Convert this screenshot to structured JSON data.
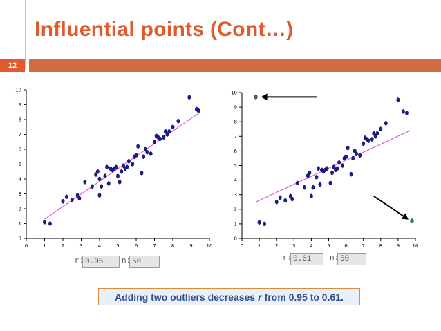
{
  "slide": {
    "title": "Influential points (Cont…)",
    "number": "12",
    "accent_color": "#e05a2e",
    "caption": {
      "before": "Adding two outliers decreases",
      "symbol": "r",
      "after": "from 0.95 to 0.61."
    }
  },
  "panels": [
    {
      "stats": {
        "r_label": "r:",
        "r_value": "0.95",
        "n_label": "n:",
        "n_value": "50"
      }
    },
    {
      "stats": {
        "r_label": "r:",
        "r_value": "0.61",
        "n_label": "n:",
        "n_value": "50"
      }
    }
  ],
  "chart_data": [
    {
      "type": "scatter",
      "xlim": [
        0,
        10
      ],
      "ylim": [
        0,
        10
      ],
      "xticks": [
        "0",
        "1",
        "2",
        "3",
        "4",
        "5",
        "6",
        "7",
        "8",
        "9",
        "10"
      ],
      "yticks": [
        "0",
        "1",
        "2",
        "3",
        "4",
        "5",
        "6",
        "7",
        "8",
        "9",
        "10"
      ],
      "grid": false,
      "point_color": "#1c1c8a",
      "regression_line": {
        "color": "#e040e0",
        "points": [
          [
            1,
            1.3
          ],
          [
            9.5,
            8.5
          ]
        ]
      },
      "x": [
        1.0,
        1.3,
        2.0,
        2.2,
        2.5,
        2.8,
        2.9,
        3.2,
        3.6,
        3.8,
        3.9,
        4.0,
        4.1,
        4.3,
        4.4,
        4.5,
        4.6,
        4.7,
        4.8,
        4.9,
        5.1,
        5.2,
        5.3,
        5.4,
        5.5,
        5.6,
        5.8,
        5.9,
        6.0,
        6.1,
        6.3,
        6.4,
        6.5,
        6.6,
        6.8,
        7.0,
        7.1,
        7.2,
        7.3,
        7.5,
        7.6,
        7.7,
        7.8,
        8.0,
        8.3,
        8.9,
        9.3,
        9.4,
        4.0,
        5.0
      ],
      "y": [
        1.1,
        1.0,
        2.5,
        2.8,
        2.6,
        2.9,
        2.7,
        3.8,
        3.5,
        4.3,
        4.5,
        2.9,
        3.5,
        4.2,
        4.8,
        3.7,
        4.7,
        4.6,
        4.7,
        4.8,
        3.8,
        4.5,
        4.9,
        4.7,
        4.8,
        5.2,
        5.0,
        5.5,
        5.6,
        6.2,
        4.4,
        5.5,
        6.0,
        5.8,
        5.7,
        6.5,
        6.9,
        6.8,
        6.7,
        6.8,
        7.2,
        7.0,
        7.2,
        7.5,
        7.9,
        9.5,
        8.7,
        8.6,
        4.0,
        4.2
      ]
    },
    {
      "type": "scatter",
      "xlim": [
        0,
        10
      ],
      "ylim": [
        0,
        10
      ],
      "xticks": [
        "0",
        "1",
        "2",
        "3",
        "4",
        "5",
        "6",
        "7",
        "8",
        "9",
        "10"
      ],
      "yticks": [
        "0",
        "1",
        "2",
        "3",
        "4",
        "5",
        "6",
        "7",
        "8",
        "9",
        "10"
      ],
      "grid": false,
      "point_color": "#1c1c8a",
      "outlier_color": "#2e8b3a",
      "regression_line": {
        "color": "#e040e0",
        "points": [
          [
            0.8,
            2.5
          ],
          [
            9.7,
            7.4
          ]
        ]
      },
      "x": [
        1.0,
        1.3,
        2.0,
        2.2,
        2.5,
        2.8,
        2.9,
        3.2,
        3.6,
        3.8,
        3.9,
        4.0,
        4.1,
        4.3,
        4.4,
        4.5,
        4.6,
        4.7,
        4.8,
        4.9,
        5.1,
        5.2,
        5.3,
        5.4,
        5.5,
        5.6,
        5.8,
        5.9,
        6.0,
        6.1,
        6.3,
        6.4,
        6.5,
        6.6,
        6.8,
        7.0,
        7.1,
        7.2,
        7.3,
        7.5,
        7.6,
        7.7,
        7.8,
        8.0,
        8.3,
        9.0,
        9.3,
        9.5
      ],
      "y": [
        1.1,
        1.0,
        2.5,
        2.8,
        2.6,
        2.9,
        2.7,
        3.8,
        3.5,
        4.3,
        4.5,
        2.9,
        3.5,
        4.2,
        4.8,
        3.7,
        4.7,
        4.6,
        4.7,
        4.8,
        3.8,
        4.5,
        4.9,
        4.7,
        4.8,
        5.2,
        5.0,
        5.5,
        5.6,
        6.2,
        4.4,
        5.5,
        6.0,
        5.8,
        5.7,
        6.5,
        6.9,
        6.8,
        6.7,
        6.8,
        7.2,
        7.0,
        7.2,
        7.5,
        7.9,
        9.5,
        8.7,
        8.6
      ],
      "outliers": {
        "x": [
          0.8,
          9.8
        ],
        "y": [
          9.7,
          1.2
        ]
      },
      "arrows": [
        {
          "from": [
            4.3,
            9.7
          ],
          "to": [
            1.1,
            9.7
          ]
        },
        {
          "from": [
            7.6,
            2.9
          ],
          "to": [
            9.6,
            1.3
          ]
        }
      ]
    }
  ]
}
